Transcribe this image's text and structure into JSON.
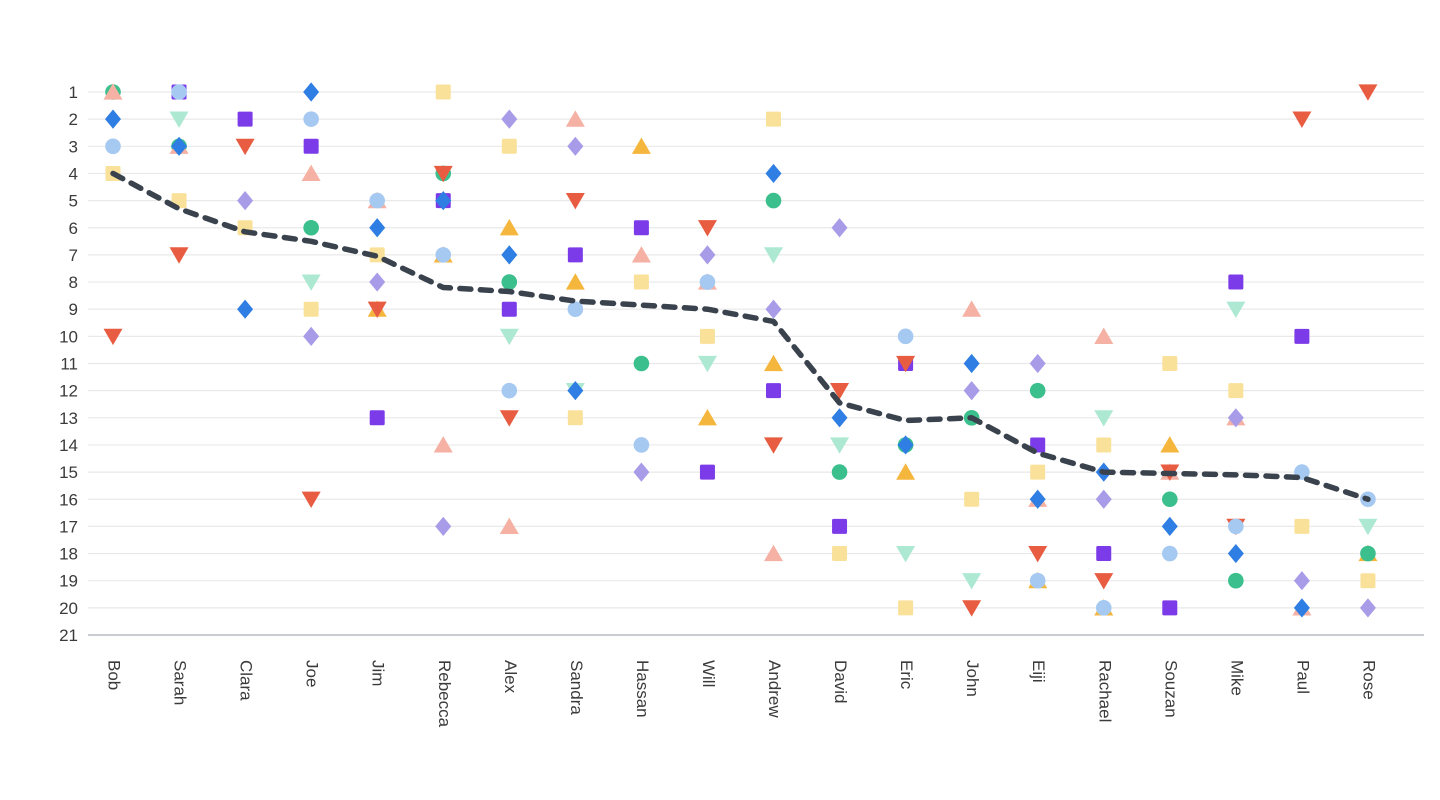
{
  "page": {
    "background": "#ffffff",
    "text_color": "#3b3b3b"
  },
  "chart_data": {
    "type": "scatter",
    "title": "",
    "legend": "none",
    "grid": true,
    "x_categories": [
      "Bob",
      "Sarah",
      "Clara",
      "Joe",
      "Jim",
      "Rebecca",
      "Alex",
      "Sandra",
      "Hassan",
      "Will",
      "Andrew",
      "David",
      "Eric",
      "John",
      "Eiji",
      "Rachael",
      "Souzan",
      "Mike",
      "Paul",
      "Rose"
    ],
    "y_axis": {
      "min": 1,
      "max": 21,
      "tick_step": 1,
      "inverted": true,
      "tick_labels": [
        "1",
        "2",
        "3",
        "4",
        "5",
        "6",
        "7",
        "8",
        "9",
        "10",
        "11",
        "12",
        "13",
        "14",
        "15",
        "16",
        "17",
        "18",
        "19",
        "20",
        "21"
      ]
    },
    "colors": {
      "gridline": "#e9e9e9",
      "baseline": "#c9cdd1",
      "label": "#3b3b3b",
      "trend": "#3a434d"
    },
    "series": [
      {
        "name": "amber-triangle-up",
        "marker": "triangle-up",
        "color": "#f5b63e",
        "values": [
          null,
          null,
          null,
          null,
          9,
          7,
          6,
          8,
          3,
          13,
          11,
          null,
          15,
          null,
          19,
          20,
          14,
          null,
          null,
          18
        ]
      },
      {
        "name": "green-circle",
        "marker": "circle",
        "color": "#3bbf8d",
        "values": [
          1,
          3,
          null,
          6,
          null,
          4,
          8,
          null,
          11,
          null,
          5,
          15,
          14,
          13,
          12,
          null,
          16,
          19,
          null,
          18
        ]
      },
      {
        "name": "salmon-triangle-up",
        "marker": "triangle-up",
        "color": "#f5b1a3",
        "values": [
          1,
          3,
          null,
          4,
          5,
          14,
          17,
          2,
          7,
          8,
          18,
          null,
          null,
          9,
          16,
          10,
          15,
          13,
          20,
          null
        ]
      },
      {
        "name": "purple-square",
        "marker": "square",
        "color": "#7c3be8",
        "values": [
          null,
          1,
          2,
          3,
          13,
          5,
          9,
          7,
          6,
          15,
          12,
          17,
          11,
          null,
          14,
          18,
          20,
          8,
          10,
          null
        ]
      },
      {
        "name": "mint-triangle-down",
        "marker": "triangle-down",
        "color": "#ade9d2",
        "values": [
          null,
          2,
          null,
          8,
          null,
          null,
          10,
          12,
          null,
          11,
          7,
          14,
          18,
          19,
          null,
          13,
          null,
          9,
          null,
          17
        ]
      },
      {
        "name": "yellow-square",
        "marker": "square",
        "color": "#fae19a",
        "values": [
          4,
          5,
          6,
          9,
          7,
          1,
          3,
          13,
          8,
          10,
          2,
          18,
          20,
          16,
          15,
          14,
          11,
          12,
          17,
          19
        ]
      },
      {
        "name": "red-triangle-down",
        "marker": "triangle-down",
        "color": "#e85d42",
        "values": [
          10,
          7,
          3,
          16,
          9,
          4,
          13,
          5,
          null,
          6,
          14,
          12,
          11,
          20,
          18,
          19,
          15,
          17,
          2,
          1
        ]
      },
      {
        "name": "lavender-diamond",
        "marker": "diamond",
        "color": "#a89ce8",
        "values": [
          null,
          null,
          5,
          10,
          8,
          17,
          2,
          3,
          15,
          7,
          9,
          6,
          null,
          12,
          11,
          16,
          null,
          13,
          19,
          20
        ]
      },
      {
        "name": "blue-diamond",
        "marker": "diamond",
        "color": "#2f7ee3",
        "values": [
          2,
          3,
          9,
          1,
          6,
          5,
          7,
          12,
          null,
          null,
          4,
          13,
          14,
          11,
          16,
          15,
          17,
          18,
          20,
          null
        ]
      },
      {
        "name": "light-blue-circle",
        "marker": "circle",
        "color": "#a6c9f2",
        "values": [
          3,
          1,
          null,
          2,
          5,
          7,
          12,
          9,
          14,
          8,
          null,
          null,
          10,
          null,
          19,
          20,
          18,
          17,
          15,
          16
        ]
      }
    ],
    "trend_line": {
      "name": "average-rank-trend",
      "style": "dashed",
      "color": "#3a434d",
      "stroke_width": 5.5,
      "values": [
        4.0,
        5.3,
        6.15,
        6.5,
        7.05,
        8.2,
        8.35,
        8.7,
        8.85,
        9.0,
        9.45,
        12.45,
        13.1,
        13.0,
        14.3,
        15.0,
        15.05,
        15.1,
        15.2,
        16.0
      ]
    }
  }
}
